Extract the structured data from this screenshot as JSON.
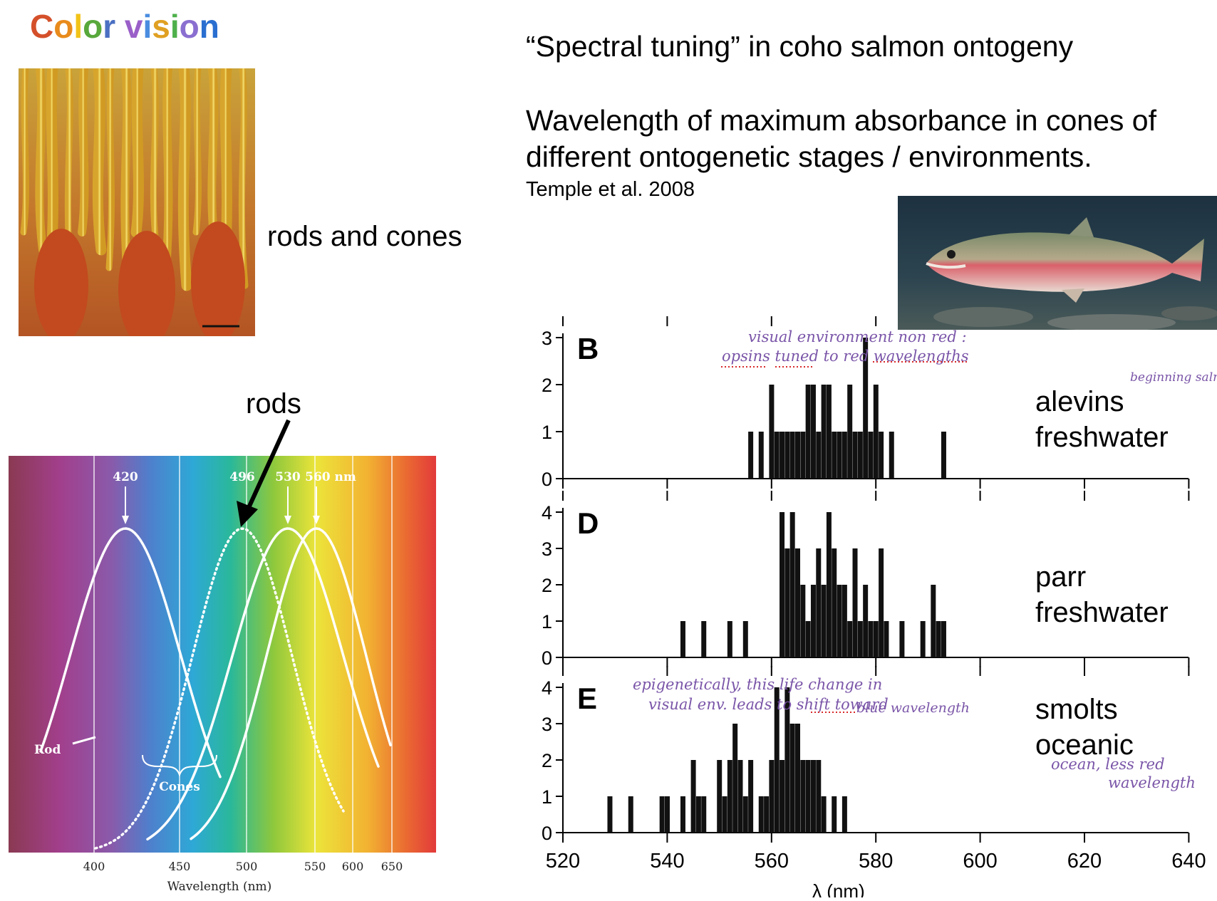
{
  "header": {
    "title_letters": [
      "C",
      "o",
      "l",
      "o",
      "r",
      " ",
      "v",
      "i",
      "s",
      "i",
      "o",
      "n"
    ],
    "title_colors": [
      "#d4502a",
      "#e88b1c",
      "#f2c318",
      "#58a83c",
      "#4a6fc2",
      "#ffffff",
      "#9a5fc8",
      "#4a8de0",
      "#e0a022",
      "#4db04a",
      "#8a6fd0",
      "#2a6fd0"
    ]
  },
  "left": {
    "photo_label": "rods and cones",
    "arrow_label": "rods"
  },
  "spectrum": {
    "peak_labels": [
      "420",
      "496",
      "530",
      "560 nm"
    ],
    "rod_label": "Rod",
    "cones_label": "Cones",
    "x_ticks": [
      "400",
      "450",
      "500",
      "550",
      "600",
      "650"
    ],
    "xlabel": "Wavelength (nm)"
  },
  "right": {
    "title": "“Spectral tuning” in coho salmon ontogeny",
    "subtitle_line1": "Wavelength of maximum absorbance in cones of",
    "subtitle_line2": "different ontogenetic stages / environments.",
    "citation": "Temple et al. 2008",
    "xlabel_fragment": "λ    (nm)"
  },
  "annotations": {
    "b_line1": "visual environment non red :",
    "b_line2": "opsins tuned to red wavelengths",
    "b_side": "beginning salm",
    "e_line1": "epigenetically, this life change in",
    "e_line2": "visual env. leads to shift toward",
    "e_line3": "blue wavelength",
    "e_side1": "ocean, less red",
    "e_side2": "wavelength"
  },
  "chart_data": [
    {
      "type": "line",
      "title": "",
      "xlabel": "Wavelength (nm)",
      "x_ticks": [
        400,
        450,
        500,
        550,
        600,
        650
      ],
      "series": [
        {
          "name": "Cone (420)",
          "peak_nm": 420
        },
        {
          "name": "Rod (496)",
          "peak_nm": 496
        },
        {
          "name": "Cone (530)",
          "peak_nm": 530
        },
        {
          "name": "Cone (560)",
          "peak_nm": 560
        }
      ]
    },
    {
      "type": "bar",
      "panel": "B",
      "stage": "alevins",
      "environment": "freshwater",
      "x": [
        556,
        557,
        558,
        559,
        560,
        561,
        562,
        563,
        564,
        565,
        566,
        567,
        568,
        569,
        570,
        571,
        572,
        573,
        574,
        575,
        576,
        577,
        578,
        579,
        580,
        581,
        582,
        583,
        593
      ],
      "values": [
        1,
        0,
        1,
        0,
        2,
        1,
        1,
        1,
        1,
        1,
        1,
        2,
        2,
        1,
        2,
        2,
        1,
        1,
        1,
        2,
        1,
        1,
        3,
        1,
        2,
        1,
        0,
        1,
        1
      ],
      "xlim": [
        520,
        640
      ],
      "ylim": [
        0,
        3
      ]
    },
    {
      "type": "bar",
      "panel": "D",
      "stage": "parr",
      "environment": "freshwater",
      "x": [
        543,
        547,
        552,
        555,
        562,
        563,
        564,
        565,
        566,
        567,
        568,
        569,
        570,
        571,
        572,
        573,
        574,
        575,
        576,
        577,
        578,
        579,
        580,
        581,
        582,
        583,
        585,
        589,
        591,
        592,
        593
      ],
      "values": [
        1,
        1,
        1,
        1,
        4,
        3,
        4,
        3,
        2,
        1,
        2,
        3,
        2,
        4,
        3,
        2,
        2,
        1,
        3,
        1,
        2,
        1,
        1,
        3,
        1,
        0,
        1,
        1,
        2,
        1,
        1
      ],
      "xlim": [
        520,
        640
      ],
      "ylim": [
        0,
        4
      ]
    },
    {
      "type": "bar",
      "panel": "E",
      "stage": "smolts",
      "environment": "oceanic",
      "x": [
        529,
        533,
        539,
        540,
        543,
        545,
        546,
        547,
        550,
        551,
        552,
        553,
        554,
        555,
        556,
        558,
        559,
        560,
        561,
        562,
        563,
        564,
        565,
        566,
        567,
        568,
        569,
        570,
        572,
        574
      ],
      "values": [
        1,
        1,
        1,
        1,
        1,
        2,
        1,
        1,
        2,
        1,
        2,
        3,
        2,
        1,
        2,
        1,
        1,
        2,
        4,
        2,
        4,
        3,
        3,
        2,
        2,
        2,
        2,
        1,
        1,
        1
      ],
      "xlim": [
        520,
        640
      ],
      "ylim": [
        0,
        4
      ],
      "x_ticks": [
        520,
        540,
        560,
        580,
        600,
        620,
        640
      ]
    }
  ]
}
